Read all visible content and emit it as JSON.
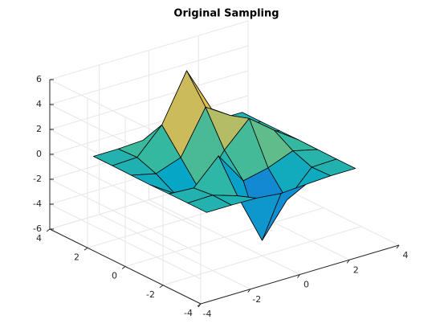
{
  "chart_data": {
    "type": "surface",
    "title": "Original Sampling",
    "x": [
      -3,
      -2,
      -1,
      0,
      1,
      2,
      3
    ],
    "y": [
      -3,
      -2,
      -1,
      0,
      1,
      2,
      3
    ],
    "z": [
      [
        0.0001,
        0.003,
        -0.03,
        -0.245,
        -0.11,
        -0.004,
        0
      ],
      [
        0.001,
        0.047,
        -0.593,
        -4.76,
        -2.103,
        -0.062,
        0
      ],
      [
        -0.012,
        -0.13,
        1.856,
        -0.724,
        -0.277,
        0.5,
        0.014
      ],
      [
        -0.037,
        -1.333,
        -1.652,
        0.981,
        2.937,
        1.412,
        0.033
      ],
      [
        -0.018,
        -0.481,
        0.229,
        3.689,
        2.43,
        0.581,
        0.012
      ],
      [
        0,
        0.08,
        2.097,
        5.859,
        2.211,
        0.133,
        0.001
      ],
      [
        0,
        0.005,
        0.11,
        0.3,
        0.111,
        0.005,
        0
      ]
    ],
    "xlim": [
      -4,
      4
    ],
    "ylim": [
      -4,
      4
    ],
    "zlim": [
      -6,
      6
    ],
    "xticks": [
      -4,
      -2,
      0,
      2,
      4
    ],
    "yticks": [
      -4,
      -2,
      0,
      2,
      4
    ],
    "zticks": [
      -6,
      -4,
      -2,
      0,
      2,
      4,
      6
    ],
    "view": [
      -37.5,
      30
    ],
    "colormap": "parula",
    "grid": true,
    "edgecolor": "#000000"
  }
}
